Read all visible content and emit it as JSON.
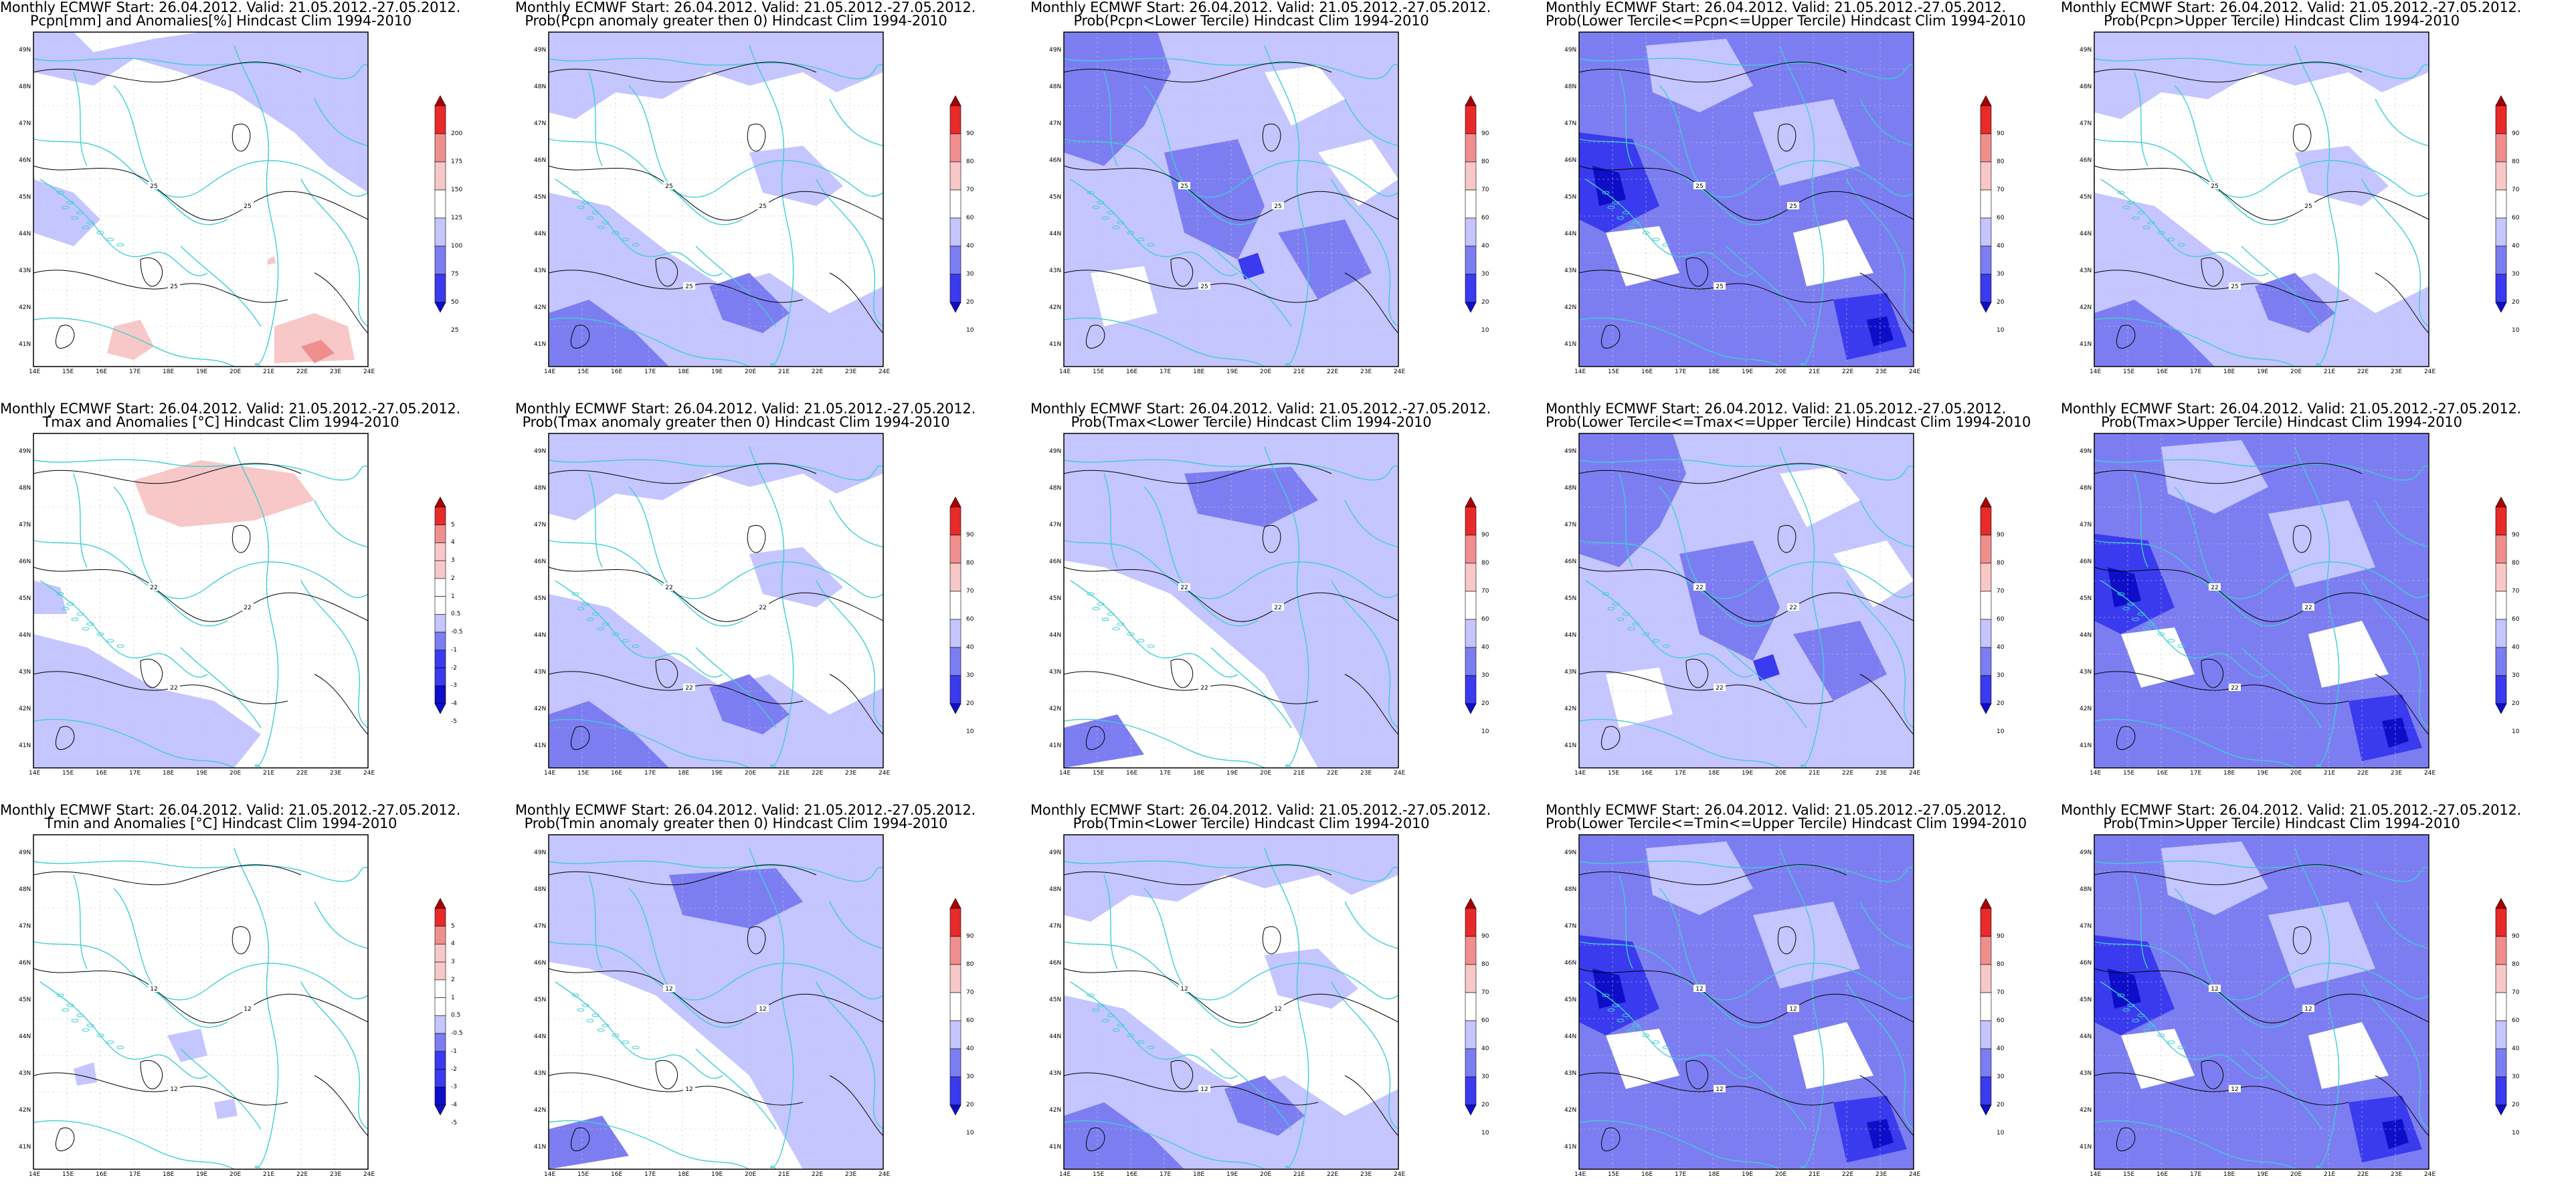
{
  "colors": {
    "coast": "#3ecfd3",
    "contour": "#000000",
    "grid": "#c8c8c8",
    "frame": "#000000",
    "white": "#ffffff",
    "light_blue": "#c5c5ff",
    "mid_blue": "#7d7df2",
    "deep_blue": "#3a3aee",
    "navy": "#0e0ec8",
    "light_red": "#f8c8c8",
    "mid_red": "#f08e8e",
    "red": "#e82a2a",
    "dark_red": "#a80000"
  },
  "axes": {
    "lon_labels": [
      "14E",
      "15E",
      "16E",
      "17E",
      "18E",
      "19E",
      "20E",
      "21E",
      "22E",
      "23E",
      "24E"
    ],
    "lat_labels": [
      "49N",
      "48N",
      "47N",
      "46N",
      "45N",
      "44N",
      "43N",
      "42N",
      "41N"
    ]
  },
  "colorbars": {
    "prob": [
      "90",
      "80",
      "70",
      "60",
      "40",
      "30",
      "20",
      "10"
    ],
    "pcpn": [
      "200",
      "175",
      "150",
      "125",
      "100",
      "75",
      "50",
      "25"
    ],
    "temp": [
      "5",
      "4",
      "3",
      "2",
      "1",
      "0.5",
      "-0.5",
      "-1",
      "-2",
      "-3",
      "-4",
      "-5"
    ]
  },
  "panels": [
    {
      "title1": "Monthly ECMWF Start: 26.04.2012. Valid: 21.05.2012.-27.05.2012.",
      "title2": "Pcpn[mm] and Anomalies[%] Hindcast Clim 1994-2010",
      "scale": "pcpn",
      "pattern": "pcpn_anom",
      "contour_label": "25"
    },
    {
      "title1": "Monthly ECMWF Start: 26.04.2012. Valid: 21.05.2012.-27.05.2012.",
      "title2": "Prob(Pcpn anomaly greater then 0) Hindcast Clim 1994-2010",
      "scale": "prob",
      "pattern": "light",
      "contour_label": "25"
    },
    {
      "title1": "Monthly ECMWF Start: 26.04.2012. Valid: 21.05.2012.-27.05.2012.",
      "title2": "Prob(Pcpn<Lower Tercile) Hindcast Clim 1994-2010",
      "scale": "prob",
      "pattern": "mid",
      "contour_label": "25"
    },
    {
      "title1": "Monthly ECMWF Start: 26.04.2012. Valid: 21.05.2012.-27.05.2012.",
      "title2": "Prob(Lower Tercile<=Pcpn<=Upper Tercile) Hindcast Clim 1994-2010",
      "scale": "prob",
      "pattern": "strong",
      "contour_label": "25"
    },
    {
      "title1": "Monthly ECMWF Start: 26.04.2012. Valid: 21.05.2012.-27.05.2012.",
      "title2": "Prob(Pcpn>Upper Tercile) Hindcast Clim 1994-2010",
      "scale": "prob",
      "pattern": "light",
      "contour_label": "25"
    },
    {
      "title1": "Monthly ECMWF Start: 26.04.2012. Valid: 21.05.2012.-27.05.2012.",
      "title2": "Tmax and Anomalies [°C] Hindcast Clim 1994-2010",
      "scale": "temp",
      "pattern": "tmax_anom",
      "contour_label": "22"
    },
    {
      "title1": "Monthly ECMWF Start: 26.04.2012. Valid: 21.05.2012.-27.05.2012.",
      "title2": "Prob(Tmax anomaly greater then 0) Hindcast Clim 1994-2010",
      "scale": "prob",
      "pattern": "light",
      "contour_label": "22"
    },
    {
      "title1": "Monthly ECMWF Start: 26.04.2012. Valid: 21.05.2012.-27.05.2012.",
      "title2": "Prob(Tmax<Lower Tercile) Hindcast Clim 1994-2010",
      "scale": "prob",
      "pattern": "light2",
      "contour_label": "22"
    },
    {
      "title1": "Monthly ECMWF Start: 26.04.2012. Valid: 21.05.2012.-27.05.2012.",
      "title2": "Prob(Lower Tercile<=Tmax<=Upper Tercile) Hindcast Clim 1994-2010",
      "scale": "prob",
      "pattern": "mid",
      "contour_label": "22"
    },
    {
      "title1": "Monthly ECMWF Start: 26.04.2012. Valid: 21.05.2012.-27.05.2012.",
      "title2": "Prob(Tmax>Upper Tercile) Hindcast Clim 1994-2010",
      "scale": "prob",
      "pattern": "strong",
      "contour_label": "22"
    },
    {
      "title1": "Monthly ECMWF Start: 26.04.2012. Valid: 21.05.2012.-27.05.2012.",
      "title2": "Tmin and Anomalies [°C] Hindcast Clim 1994-2010",
      "scale": "temp",
      "pattern": "tmin_anom",
      "contour_label": "12"
    },
    {
      "title1": "Monthly ECMWF Start: 26.04.2012. Valid: 21.05.2012.-27.05.2012.",
      "title2": "Prob(Tmin anomaly greater then 0) Hindcast Clim 1994-2010",
      "scale": "prob",
      "pattern": "light2",
      "contour_label": "12"
    },
    {
      "title1": "Monthly ECMWF Start: 26.04.2012. Valid: 21.05.2012.-27.05.2012.",
      "title2": "Prob(Tmin<Lower Tercile) Hindcast Clim 1994-2010",
      "scale": "prob",
      "pattern": "light",
      "contour_label": "12"
    },
    {
      "title1": "Monthly ECMWF Start: 26.04.2012. Valid: 21.05.2012.-27.05.2012.",
      "title2": "Prob(Lower Tercile<=Tmin<=Upper Tercile) Hindcast Clim 1994-2010",
      "scale": "prob",
      "pattern": "strong",
      "contour_label": "12"
    },
    {
      "title1": "Monthly ECMWF Start: 26.04.2012. Valid: 21.05.2012.-27.05.2012.",
      "title2": "Prob(Tmin>Upper Tercile) Hindcast Clim 1994-2010",
      "scale": "prob",
      "pattern": "strong",
      "contour_label": "12"
    }
  ]
}
